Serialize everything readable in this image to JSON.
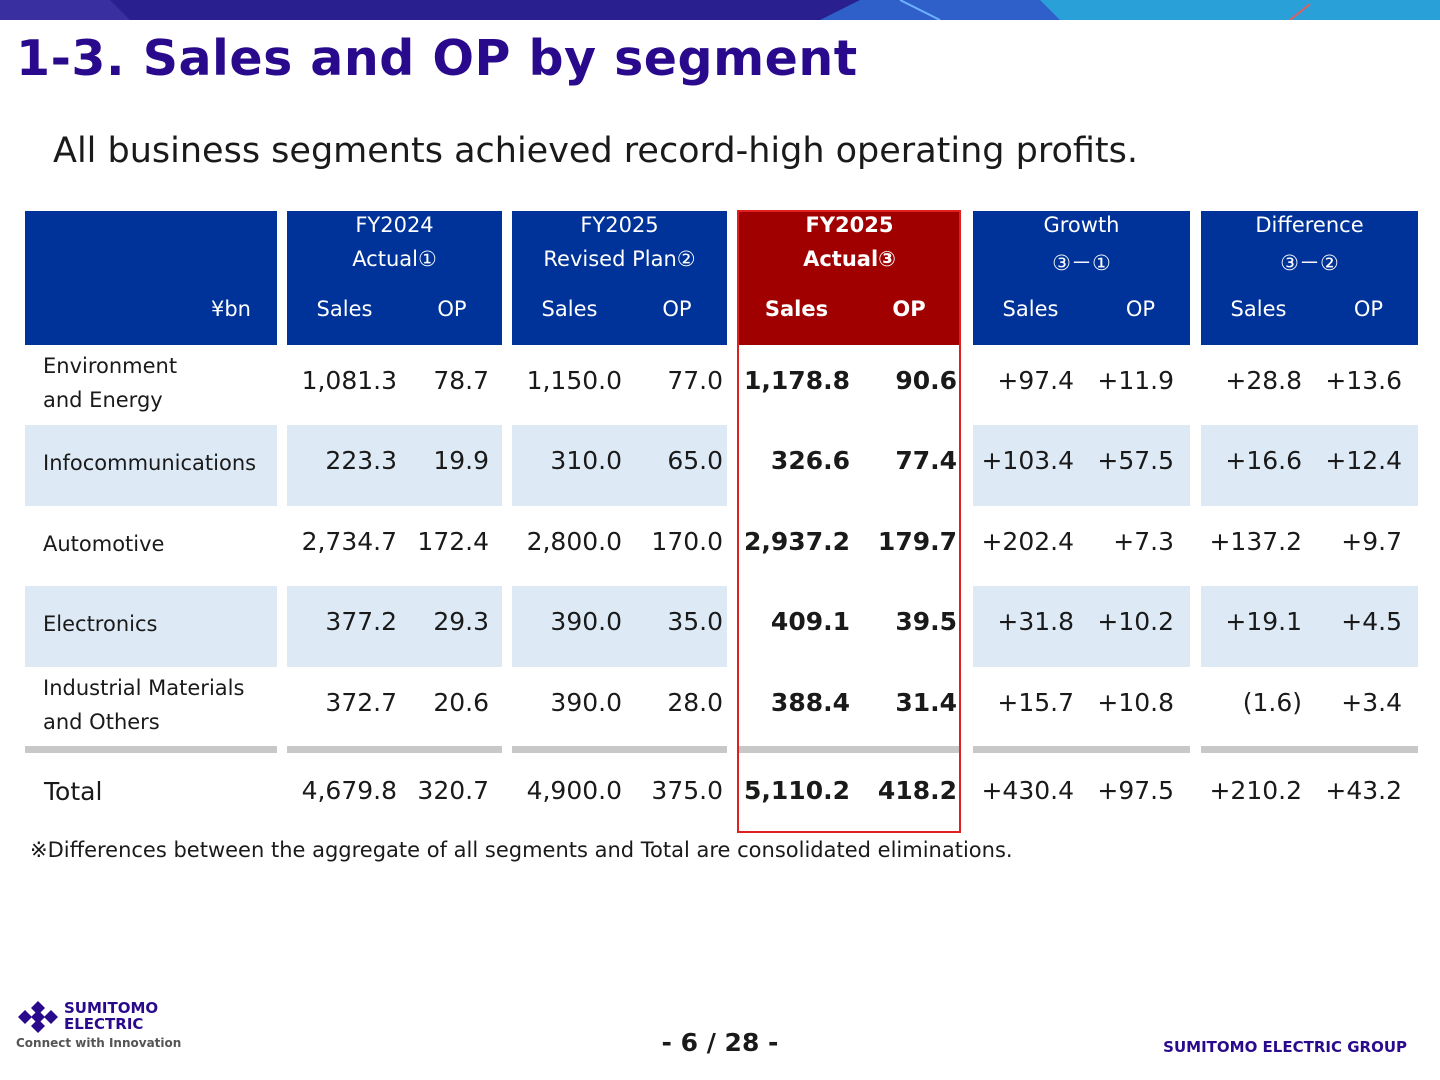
{
  "title": "1-3. Sales and OP by segment",
  "subtitle": "All business segments achieved record-high operating profits.",
  "table": {
    "unit": "¥bn",
    "groups": [
      {
        "line1": "FY2024",
        "line2": "Actual①",
        "sales": "Sales",
        "op": "OP"
      },
      {
        "line1": "FY2025",
        "line2": "Revised Plan②",
        "sales": "Sales",
        "op": "OP"
      },
      {
        "line1": "FY2025",
        "line2": "Actual③",
        "sales": "Sales",
        "op": "OP"
      },
      {
        "line1": "Growth",
        "line2": "③－①",
        "sales": "Sales",
        "op": "OP"
      },
      {
        "line1": "Difference",
        "line2": "③－②",
        "sales": "Sales",
        "op": "OP"
      }
    ],
    "rows": [
      {
        "label1": "Environment",
        "label2": "and Energy",
        "values": [
          "1,081.3",
          "78.7",
          "1,150.0",
          "77.0",
          "1,178.8",
          "90.6",
          "+97.4",
          "+11.9",
          "+28.8",
          "+13.6"
        ]
      },
      {
        "label1": "Infocommunications",
        "label2": "",
        "values": [
          "223.3",
          "19.9",
          "310.0",
          "65.0",
          "326.6",
          "77.4",
          "+103.4",
          "+57.5",
          "+16.6",
          "+12.4"
        ]
      },
      {
        "label1": "Automotive",
        "label2": "",
        "values": [
          "2,734.7",
          "172.4",
          "2,800.0",
          "170.0",
          "2,937.2",
          "179.7",
          "+202.4",
          "+7.3",
          "+137.2",
          "+9.7"
        ]
      },
      {
        "label1": "Electronics",
        "label2": "",
        "values": [
          "377.2",
          "29.3",
          "390.0",
          "35.0",
          "409.1",
          "39.5",
          "+31.8",
          "+10.2",
          "+19.1",
          "+4.5"
        ]
      },
      {
        "label1": "Industrial Materials",
        "label2": "and Others",
        "values": [
          "372.7",
          "20.6",
          "390.0",
          "28.0",
          "388.4",
          "31.4",
          "+15.7",
          "+10.8",
          "(1.6)",
          "+3.4"
        ]
      }
    ],
    "total": {
      "label": "Total",
      "values": [
        "4,679.8",
        "320.7",
        "4,900.0",
        "375.0",
        "5,110.2",
        "418.2",
        "+430.4",
        "+97.5",
        "+210.2",
        "+43.2"
      ]
    }
  },
  "note": "※Differences between the aggregate of all segments and Total are consolidated eliminations.",
  "footer": {
    "logo_line1": "SUMITOMO",
    "logo_line2": "ELECTRIC",
    "logo_tagline": "Connect with Innovation",
    "page": "- 6 / 28 -",
    "group": "SUMITOMO ELECTRIC GROUP"
  },
  "colors": {
    "header_blue": "#003399",
    "highlight_red": "#a00000",
    "band_blue": "#ddeaf6",
    "title": "#2a0a8c"
  }
}
